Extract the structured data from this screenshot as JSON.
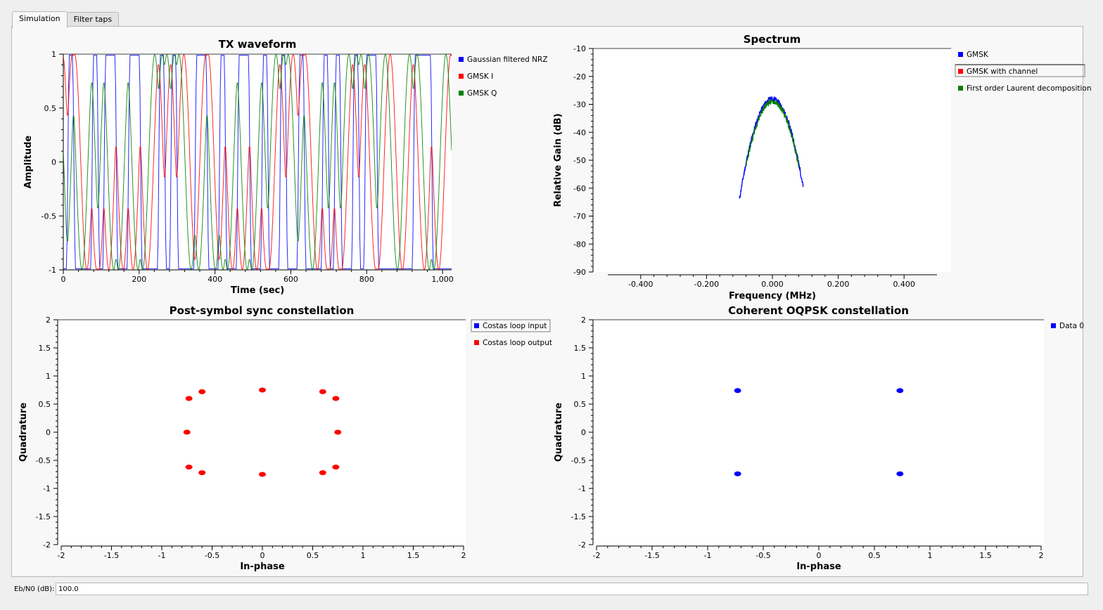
{
  "tabs": [
    {
      "label": "Simulation",
      "active": true
    },
    {
      "label": "Filter taps",
      "active": false
    }
  ],
  "ebn0": {
    "label": "Eb/N0 (dB):",
    "value": "100.0"
  },
  "chart_data": [
    {
      "type": "line",
      "title": "TX waveform",
      "xlabel": "Time (sec)",
      "ylabel": "Amplitude",
      "xlim": [
        0,
        1024
      ],
      "ylim": [
        -1,
        1
      ],
      "xticks": [
        "0",
        "200",
        "400",
        "600",
        "800",
        "1,000"
      ],
      "yticks": [
        "-1",
        "-0.5",
        "0",
        "0.5",
        "1"
      ],
      "legend_position": "right",
      "grid": false,
      "series": [
        {
          "name": "Gaussian filtered NRZ",
          "color": "#0000ff",
          "description": "Gaussian-filtered NRZ bit stream, +/-1 levels, ~1024 samples"
        },
        {
          "name": "GMSK I",
          "color": "#ff0000",
          "description": "In-phase component of GMSK signal, oscillating between -1 and 1"
        },
        {
          "name": "GMSK Q",
          "color": "#008000",
          "description": "Quadrature component of GMSK signal, oscillating between -1 and 1"
        }
      ]
    },
    {
      "type": "line",
      "title": "Spectrum",
      "xlabel": "Frequency (MHz)",
      "ylabel": "Relative Gain (dB)",
      "xlim": [
        -0.5,
        0.5
      ],
      "ylim": [
        -90,
        -10
      ],
      "xticks": [
        "-0.400",
        "-0.200",
        "0.000",
        "0.200",
        "0.400"
      ],
      "yticks": [
        "-10",
        "-20",
        "-30",
        "-40",
        "-50",
        "-60",
        "-70",
        "-80",
        "-90"
      ],
      "legend_position": "right",
      "grid": false,
      "series": [
        {
          "name": "GMSK",
          "color": "#0000ff",
          "peak": {
            "x": 0.0,
            "y": -28
          },
          "sidelobes": [
            {
              "x": -0.065,
              "y": -60
            },
            {
              "x": 0.06,
              "y": -60
            }
          ],
          "edges_x": [
            -0.1,
            0.095
          ]
        },
        {
          "name": "GMSK with channel",
          "color": "#ff0000"
        },
        {
          "name": "First order Laurent decomposition",
          "color": "#008000",
          "peak": {
            "x": 0.0,
            "y": -29
          },
          "sidelobes": [
            {
              "x": -0.065,
              "y": -60
            },
            {
              "x": 0.06,
              "y": -61
            }
          ],
          "edges_x": [
            -0.08,
            0.08
          ]
        }
      ]
    },
    {
      "type": "scatter",
      "title": "Post-symbol sync constellation",
      "xlabel": "In-phase",
      "ylabel": "Quadrature",
      "xlim": [
        -2,
        2
      ],
      "ylim": [
        -2,
        2
      ],
      "xticks": [
        "-2",
        "-1.5",
        "-1",
        "-0.5",
        "0",
        "0.5",
        "1",
        "1.5",
        "2"
      ],
      "yticks": [
        "-2",
        "-1.5",
        "-1",
        "-0.5",
        "0",
        "0.5",
        "1",
        "1.5",
        "2"
      ],
      "legend_position": "right",
      "grid": false,
      "series": [
        {
          "name": "Costas loop input",
          "color": "#0000ff",
          "points": []
        },
        {
          "name": "Costas loop output",
          "color": "#ff0000",
          "points": [
            [
              0.0,
              0.75
            ],
            [
              0.0,
              -0.75
            ],
            [
              -0.75,
              0.0
            ],
            [
              0.75,
              0.0
            ],
            [
              -0.6,
              0.72
            ],
            [
              -0.73,
              0.6
            ],
            [
              0.6,
              0.72
            ],
            [
              0.73,
              0.6
            ],
            [
              -0.6,
              -0.72
            ],
            [
              -0.73,
              -0.62
            ],
            [
              0.6,
              -0.72
            ],
            [
              0.73,
              -0.62
            ]
          ]
        }
      ]
    },
    {
      "type": "scatter",
      "title": "Coherent OQPSK constellation",
      "xlabel": "In-phase",
      "ylabel": "Quadrature",
      "xlim": [
        -2,
        2
      ],
      "ylim": [
        -2,
        2
      ],
      "xticks": [
        "-2",
        "-1.5",
        "-1",
        "-0.5",
        "0",
        "0.5",
        "1",
        "1.5",
        "2"
      ],
      "yticks": [
        "-2",
        "-1.5",
        "-1",
        "-0.5",
        "0",
        "0.5",
        "1",
        "1.5",
        "2"
      ],
      "legend_position": "right",
      "grid": false,
      "series": [
        {
          "name": "Data 0",
          "color": "#0000ff",
          "points": [
            [
              -0.73,
              0.74
            ],
            [
              0.73,
              0.74
            ],
            [
              -0.73,
              -0.74
            ],
            [
              0.73,
              -0.74
            ]
          ]
        }
      ]
    }
  ]
}
